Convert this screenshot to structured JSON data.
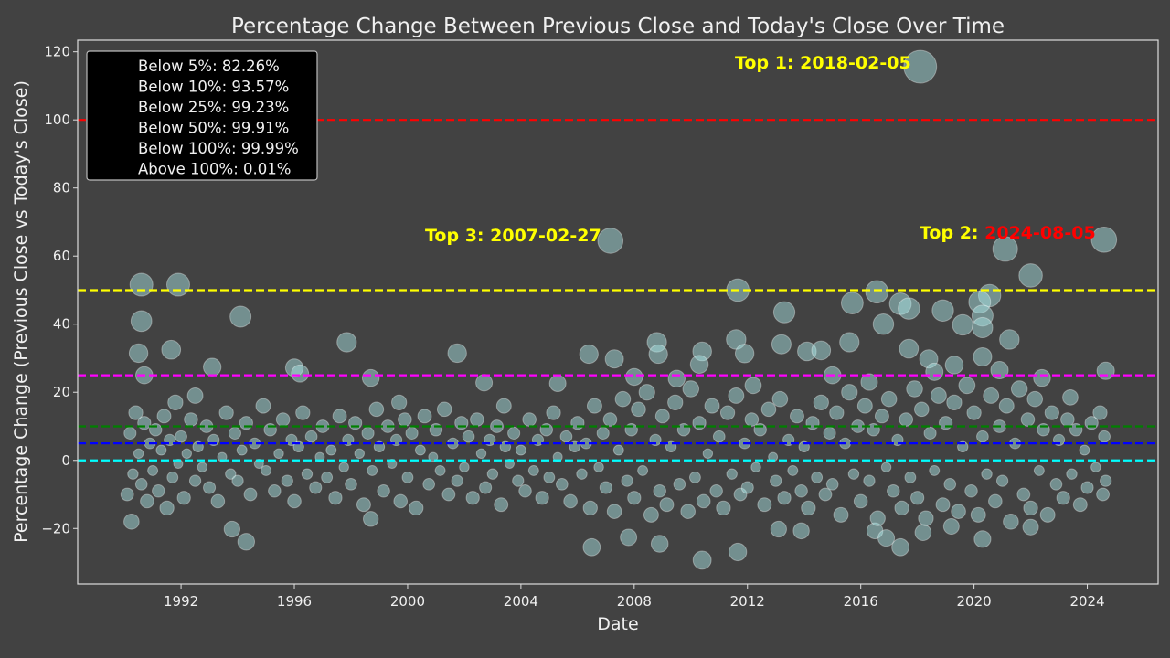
{
  "chart_data": {
    "type": "scatter",
    "title": "Percentage Change Between Previous Close and Today's Close Over Time",
    "xlabel": "Date",
    "ylabel": "Percentage Change (Previous Close vs Today's Close)",
    "xlim": [
      1988.35,
      2026.5
    ],
    "ylim": [
      -36.3,
      123.4
    ],
    "x_ticks": [
      "1992",
      "1996",
      "2000",
      "2004",
      "2008",
      "2012",
      "2016",
      "2020",
      "2024"
    ],
    "y_ticks": [
      -20,
      0,
      20,
      40,
      60,
      80,
      100,
      120
    ],
    "y_tick_labels": [
      "−20",
      "0",
      "20",
      "40",
      "60",
      "80",
      "100",
      "120"
    ],
    "grid": false,
    "marker_color": "#afeeee",
    "marker_size": "proportional to absolute percentage change",
    "legend": {
      "placement": "top-left",
      "entries": [
        "Below 5%: 82.26%",
        "Below 10%: 93.57%",
        "Below 25%: 99.23%",
        "Below 50%: 99.91%",
        "Below 100%: 99.99%",
        "Above 100%: 0.01%"
      ]
    },
    "threshold_lines": [
      {
        "y": 100,
        "color": "#ff0000"
      },
      {
        "y": 50,
        "color": "#ffff00"
      },
      {
        "y": 25,
        "color": "#ff00ff"
      },
      {
        "y": 10,
        "color": "#008000"
      },
      {
        "y": 5,
        "color": "#0000ff"
      },
      {
        "y": 0,
        "color": "#00ffff"
      }
    ],
    "annotations": [
      {
        "prefix": "Top 1: ",
        "date": "2018-02-05",
        "x": 2018.1,
        "y": 115.6,
        "color": "#ffff00",
        "date_color": "#ffff00"
      },
      {
        "prefix": "Top 2: ",
        "date": "2024-08-05",
        "x": 2024.59,
        "y": 64.8,
        "color": "#ffff00",
        "date_color": "#ff0000"
      },
      {
        "prefix": "Top 3: ",
        "date": "2007-02-27",
        "x": 2007.16,
        "y": 64.5,
        "color": "#ffff00",
        "date_color": "#ffff00"
      }
    ],
    "points": [
      [
        2018.1,
        115.6
      ],
      [
        2024.59,
        64.8
      ],
      [
        2007.16,
        64.5
      ],
      [
        2021.1,
        62.1
      ],
      [
        2022.0,
        54.3
      ],
      [
        1990.6,
        51.6
      ],
      [
        1991.9,
        51.6
      ],
      [
        2011.66,
        50
      ],
      [
        2016.57,
        49.5
      ],
      [
        2020.55,
        48.4
      ],
      [
        2020.2,
        46.5
      ],
      [
        2015.7,
        46.2
      ],
      [
        2017.4,
        46
      ],
      [
        2017.7,
        44.6
      ],
      [
        2018.9,
        44
      ],
      [
        2013.3,
        43.5
      ],
      [
        2020.3,
        42.5
      ],
      [
        1994.1,
        42.2
      ],
      [
        1990.6,
        40.9
      ],
      [
        2016.8,
        40
      ],
      [
        2019.6,
        39.8
      ],
      [
        2020.3,
        39
      ],
      [
        2021.25,
        35.5
      ],
      [
        2011.6,
        35.5
      ],
      [
        1997.85,
        34.7
      ],
      [
        2015.6,
        34.7
      ],
      [
        2013.2,
        34.1
      ],
      [
        2008.8,
        34.7
      ],
      [
        1991.65,
        32.5
      ],
      [
        1990.5,
        31.5
      ],
      [
        2008.85,
        31.2
      ],
      [
        2001.75,
        31.5
      ],
      [
        2010.4,
        32
      ],
      [
        2017.7,
        32.8
      ],
      [
        2011.9,
        31.4
      ],
      [
        2006.4,
        31.2
      ],
      [
        2007.3,
        29.8
      ],
      [
        2014.1,
        32
      ],
      [
        2014.6,
        32.3
      ],
      [
        2020.3,
        30.4
      ],
      [
        2018.4,
        29.8
      ],
      [
        1993.1,
        27.4
      ],
      [
        1996.0,
        27.2
      ],
      [
        2010.3,
        28.2
      ],
      [
        2024.65,
        26.3
      ],
      [
        1990.7,
        25
      ],
      [
        1996.2,
        25.5
      ],
      [
        1998.7,
        24.2
      ],
      [
        2002.7,
        22.8
      ],
      [
        2005.3,
        22.6
      ],
      [
        2022.4,
        24.2
      ],
      [
        2008.0,
        24.5
      ],
      [
        2019.3,
        28
      ],
      [
        2018.6,
        26
      ],
      [
        2020.9,
        26.5
      ],
      [
        2015.0,
        25
      ],
      [
        2009.5,
        24
      ],
      [
        2012.2,
        22
      ],
      [
        2016.3,
        23
      ],
      [
        2023.4,
        18.5
      ],
      [
        1992.5,
        19
      ],
      [
        1999.7,
        17
      ],
      [
        2003.4,
        16
      ],
      [
        2010.4,
        -29.3
      ],
      [
        2011.66,
        -26.9
      ],
      [
        2006.5,
        -25.5
      ],
      [
        1994.3,
        -23.9
      ],
      [
        2020.3,
        -23.1
      ],
      [
        2017.4,
        -25.5
      ],
      [
        2008.9,
        -24.5
      ],
      [
        2007.8,
        -22.6
      ],
      [
        1993.8,
        -20.2
      ],
      [
        2013.1,
        -20.2
      ],
      [
        2022.0,
        -19.6
      ],
      [
        2013.9,
        -20.7
      ],
      [
        1990.25,
        -18
      ],
      [
        1998.7,
        -17.2
      ],
      [
        2018.2,
        -21.2
      ],
      [
        2019.2,
        -19.4
      ],
      [
        2016.5,
        -20.7
      ],
      [
        2016.9,
        -22.8
      ],
      [
        1990.1,
        -10
      ],
      [
        1990.2,
        8
      ],
      [
        1990.3,
        -4
      ],
      [
        1990.4,
        14
      ],
      [
        1990.5,
        2
      ],
      [
        1990.6,
        -7
      ],
      [
        1990.7,
        11
      ],
      [
        1990.8,
        -12
      ],
      [
        1990.9,
        5
      ],
      [
        1991.0,
        -3
      ],
      [
        1991.1,
        9
      ],
      [
        1991.2,
        -9
      ],
      [
        1991.3,
        3
      ],
      [
        1991.4,
        13
      ],
      [
        1991.5,
        -14
      ],
      [
        1991.6,
        6
      ],
      [
        1991.7,
        -5
      ],
      [
        1991.8,
        17
      ],
      [
        1991.9,
        -1
      ],
      [
        1992.0,
        7
      ],
      [
        1992.1,
        -11
      ],
      [
        1992.2,
        2
      ],
      [
        1992.35,
        12
      ],
      [
        1992.5,
        -6
      ],
      [
        1992.6,
        4
      ],
      [
        1992.75,
        -2
      ],
      [
        1992.9,
        10
      ],
      [
        1993.0,
        -8
      ],
      [
        1993.15,
        6
      ],
      [
        1993.3,
        -12
      ],
      [
        1993.45,
        1
      ],
      [
        1993.6,
        14
      ],
      [
        1993.75,
        -4
      ],
      [
        1993.9,
        8
      ],
      [
        1994.0,
        -6
      ],
      [
        1994.15,
        3
      ],
      [
        1994.3,
        11
      ],
      [
        1994.45,
        -10
      ],
      [
        1994.6,
        5
      ],
      [
        1994.75,
        -1
      ],
      [
        1994.9,
        16
      ],
      [
        1995.0,
        -3
      ],
      [
        1995.15,
        9
      ],
      [
        1995.3,
        -9
      ],
      [
        1995.45,
        2
      ],
      [
        1995.6,
        12
      ],
      [
        1995.75,
        -6
      ],
      [
        1995.9,
        6
      ],
      [
        1996.0,
        -12
      ],
      [
        1996.15,
        4
      ],
      [
        1996.3,
        14
      ],
      [
        1996.45,
        -4
      ],
      [
        1996.6,
        7
      ],
      [
        1996.75,
        -8
      ],
      [
        1996.9,
        1
      ],
      [
        1997.0,
        10
      ],
      [
        1997.15,
        -5
      ],
      [
        1997.3,
        3
      ],
      [
        1997.45,
        -11
      ],
      [
        1997.6,
        13
      ],
      [
        1997.75,
        -2
      ],
      [
        1997.9,
        6
      ],
      [
        1998.0,
        -7
      ],
      [
        1998.15,
        11
      ],
      [
        1998.3,
        2
      ],
      [
        1998.45,
        -13
      ],
      [
        1998.6,
        8
      ],
      [
        1998.75,
        -3
      ],
      [
        1998.9,
        15
      ],
      [
        1999.0,
        4
      ],
      [
        1999.15,
        -9
      ],
      [
        1999.3,
        10
      ],
      [
        1999.45,
        -1
      ],
      [
        1999.6,
        6
      ],
      [
        1999.75,
        -12
      ],
      [
        1999.9,
        12
      ],
      [
        2000.0,
        -5
      ],
      [
        2000.15,
        8
      ],
      [
        2000.3,
        -14
      ],
      [
        2000.45,
        3
      ],
      [
        2000.6,
        13
      ],
      [
        2000.75,
        -7
      ],
      [
        2000.9,
        1
      ],
      [
        2001.0,
        9
      ],
      [
        2001.15,
        -3
      ],
      [
        2001.3,
        15
      ],
      [
        2001.45,
        -10
      ],
      [
        2001.6,
        5
      ],
      [
        2001.75,
        -6
      ],
      [
        2001.9,
        11
      ],
      [
        2002.0,
        -2
      ],
      [
        2002.15,
        7
      ],
      [
        2002.3,
        -11
      ],
      [
        2002.45,
        12
      ],
      [
        2002.6,
        2
      ],
      [
        2002.75,
        -8
      ],
      [
        2002.9,
        6
      ],
      [
        2003.0,
        -4
      ],
      [
        2003.15,
        10
      ],
      [
        2003.3,
        -13
      ],
      [
        2003.45,
        4
      ],
      [
        2003.6,
        -1
      ],
      [
        2003.75,
        8
      ],
      [
        2003.9,
        -6
      ],
      [
        2004.0,
        3
      ],
      [
        2004.15,
        -9
      ],
      [
        2004.3,
        12
      ],
      [
        2004.45,
        -3
      ],
      [
        2004.6,
        6
      ],
      [
        2004.75,
        -11
      ],
      [
        2004.9,
        9
      ],
      [
        2005.0,
        -5
      ],
      [
        2005.15,
        14
      ],
      [
        2005.3,
        1
      ],
      [
        2005.45,
        -7
      ],
      [
        2005.6,
        7
      ],
      [
        2005.75,
        -12
      ],
      [
        2005.9,
        4
      ],
      [
        2006.0,
        11
      ],
      [
        2006.15,
        -4
      ],
      [
        2006.3,
        5
      ],
      [
        2006.45,
        -14
      ],
      [
        2006.6,
        16
      ],
      [
        2006.75,
        -2
      ],
      [
        2006.9,
        8
      ],
      [
        2007.0,
        -8
      ],
      [
        2007.15,
        12
      ],
      [
        2007.3,
        -15
      ],
      [
        2007.45,
        3
      ],
      [
        2007.6,
        18
      ],
      [
        2007.75,
        -6
      ],
      [
        2007.9,
        9
      ],
      [
        2008.0,
        -11
      ],
      [
        2008.15,
        15
      ],
      [
        2008.3,
        -3
      ],
      [
        2008.45,
        20
      ],
      [
        2008.6,
        -16
      ],
      [
        2008.75,
        6
      ],
      [
        2008.9,
        -9
      ],
      [
        2009.0,
        13
      ],
      [
        2009.15,
        -13
      ],
      [
        2009.3,
        4
      ],
      [
        2009.45,
        17
      ],
      [
        2009.6,
        -7
      ],
      [
        2009.75,
        9
      ],
      [
        2009.9,
        -15
      ],
      [
        2010.0,
        21
      ],
      [
        2010.15,
        -5
      ],
      [
        2010.3,
        11
      ],
      [
        2010.45,
        -12
      ],
      [
        2010.6,
        2
      ],
      [
        2010.75,
        16
      ],
      [
        2010.9,
        -9
      ],
      [
        2011.0,
        7
      ],
      [
        2011.15,
        -14
      ],
      [
        2011.3,
        14
      ],
      [
        2011.45,
        -4
      ],
      [
        2011.6,
        19
      ],
      [
        2011.75,
        -10
      ],
      [
        2011.9,
        5
      ],
      [
        2012.0,
        -8
      ],
      [
        2012.15,
        12
      ],
      [
        2012.3,
        -2
      ],
      [
        2012.45,
        9
      ],
      [
        2012.6,
        -13
      ],
      [
        2012.75,
        15
      ],
      [
        2012.9,
        1
      ],
      [
        2013.0,
        -6
      ],
      [
        2013.15,
        18
      ],
      [
        2013.3,
        -11
      ],
      [
        2013.45,
        6
      ],
      [
        2013.6,
        -3
      ],
      [
        2013.75,
        13
      ],
      [
        2013.9,
        -9
      ],
      [
        2014.0,
        4
      ],
      [
        2014.15,
        -14
      ],
      [
        2014.3,
        11
      ],
      [
        2014.45,
        -5
      ],
      [
        2014.6,
        17
      ],
      [
        2014.75,
        -10
      ],
      [
        2014.9,
        8
      ],
      [
        2015.0,
        -7
      ],
      [
        2015.15,
        14
      ],
      [
        2015.3,
        -16
      ],
      [
        2015.45,
        5
      ],
      [
        2015.6,
        20
      ],
      [
        2015.75,
        -4
      ],
      [
        2015.9,
        10
      ],
      [
        2016.0,
        -12
      ],
      [
        2016.15,
        16
      ],
      [
        2016.3,
        -6
      ],
      [
        2016.45,
        9
      ],
      [
        2016.6,
        -17
      ],
      [
        2016.75,
        13
      ],
      [
        2016.9,
        -2
      ],
      [
        2017.0,
        18
      ],
      [
        2017.15,
        -9
      ],
      [
        2017.3,
        6
      ],
      [
        2017.45,
        -14
      ],
      [
        2017.6,
        12
      ],
      [
        2017.75,
        -5
      ],
      [
        2017.9,
        21
      ],
      [
        2018.0,
        -11
      ],
      [
        2018.15,
        15
      ],
      [
        2018.3,
        -17
      ],
      [
        2018.45,
        8
      ],
      [
        2018.6,
        -3
      ],
      [
        2018.75,
        19
      ],
      [
        2018.9,
        -13
      ],
      [
        2019.0,
        11
      ],
      [
        2019.15,
        -7
      ],
      [
        2019.3,
        17
      ],
      [
        2019.45,
        -15
      ],
      [
        2019.6,
        4
      ],
      [
        2019.75,
        22
      ],
      [
        2019.9,
        -9
      ],
      [
        2020.0,
        14
      ],
      [
        2020.15,
        -16
      ],
      [
        2020.3,
        7
      ],
      [
        2020.45,
        -4
      ],
      [
        2020.6,
        19
      ],
      [
        2020.75,
        -12
      ],
      [
        2020.9,
        10
      ],
      [
        2021.0,
        -6
      ],
      [
        2021.15,
        16
      ],
      [
        2021.3,
        -18
      ],
      [
        2021.45,
        5
      ],
      [
        2021.6,
        21
      ],
      [
        2021.75,
        -10
      ],
      [
        2021.9,
        12
      ],
      [
        2022.0,
        -14
      ],
      [
        2022.15,
        18
      ],
      [
        2022.3,
        -3
      ],
      [
        2022.45,
        9
      ],
      [
        2022.6,
        -16
      ],
      [
        2022.75,
        14
      ],
      [
        2022.9,
        -7
      ],
      [
        2023.0,
        6
      ],
      [
        2023.15,
        -11
      ],
      [
        2023.3,
        12
      ],
      [
        2023.45,
        -4
      ],
      [
        2023.6,
        9
      ],
      [
        2023.75,
        -13
      ],
      [
        2023.9,
        3
      ],
      [
        2024.0,
        -8
      ],
      [
        2024.15,
        11
      ],
      [
        2024.3,
        -2
      ],
      [
        2024.45,
        14
      ],
      [
        2024.55,
        -10
      ],
      [
        2024.6,
        7
      ],
      [
        2024.65,
        -6
      ]
    ]
  }
}
